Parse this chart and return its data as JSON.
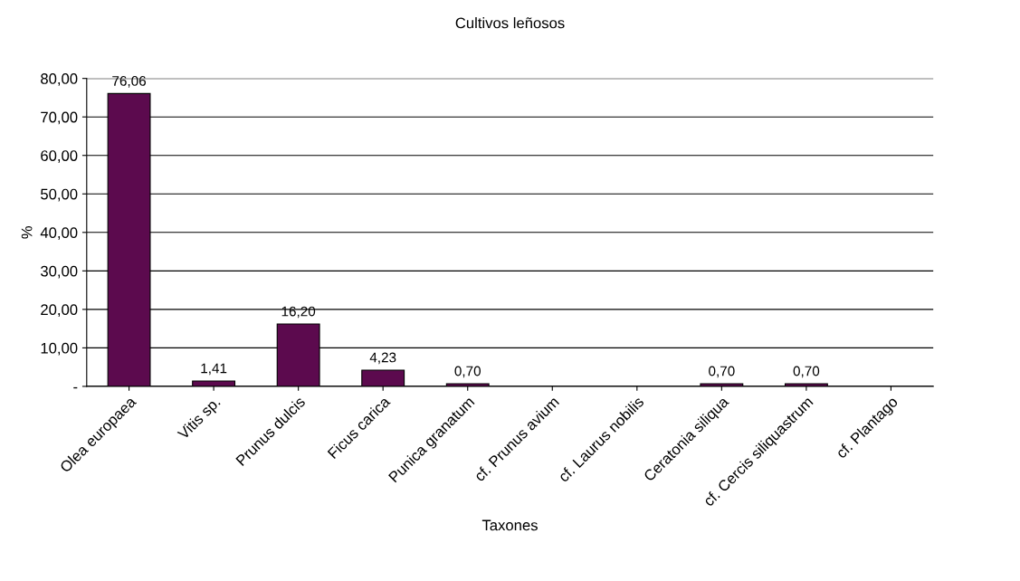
{
  "chart_data": {
    "type": "bar",
    "title": "Cultivos leñosos",
    "xlabel": "Taxones",
    "ylabel": "%",
    "categories": [
      "Olea europaea",
      "Vitis sp.",
      "Prunus dulcis",
      "Ficus carica",
      "Punica granatum",
      "cf. Prunus avium",
      "cf. Laurus nobilis",
      "Ceratonia siliqua",
      "cf. Cercis siliquastrum",
      "cf. Plantago"
    ],
    "values": [
      76.06,
      1.41,
      16.2,
      4.23,
      0.7,
      0,
      0,
      0.7,
      0.7,
      0
    ],
    "value_labels": [
      "76,06",
      "1,41",
      "16,20",
      "4,23",
      "0,70",
      null,
      null,
      "0,70",
      "0,70",
      null
    ],
    "color": "#5c0a4e",
    "ylim": [
      0,
      80
    ],
    "yticks": [
      {
        "value": 0,
        "label": "-"
      },
      {
        "value": 10,
        "label": "10,00"
      },
      {
        "value": 20,
        "label": "20,00"
      },
      {
        "value": 30,
        "label": "30,00"
      },
      {
        "value": 40,
        "label": "40,00"
      },
      {
        "value": 50,
        "label": "50,00"
      },
      {
        "value": 60,
        "label": "60,00"
      },
      {
        "value": 70,
        "label": "70,00"
      },
      {
        "value": 80,
        "label": "80,00"
      }
    ],
    "grid": "y",
    "legend": false
  }
}
